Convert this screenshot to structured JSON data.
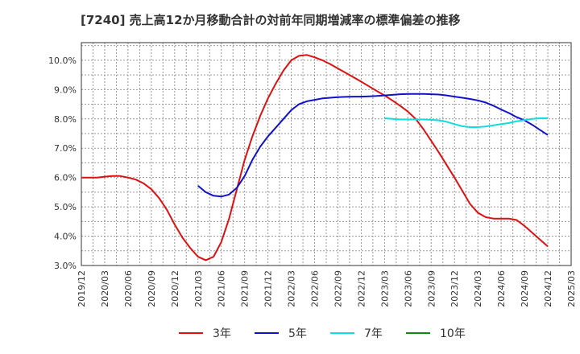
{
  "chart_data": {
    "type": "line",
    "title": "[7240]  売上高12か月移動合計の対前年同期増減率の標準偏差の推移",
    "x_tick_labels": [
      "2019/12",
      "2020/03",
      "2020/06",
      "2020/09",
      "2020/12",
      "2021/03",
      "2021/06",
      "2021/09",
      "2021/12",
      "2022/03",
      "2022/06",
      "2022/09",
      "2022/12",
      "2023/03",
      "2023/06",
      "2023/09",
      "2023/12",
      "2024/03",
      "2024/06",
      "2024/09",
      "2024/12",
      "2025/03"
    ],
    "y_tick_labels": [
      "10.0%",
      "9.0%",
      "8.0%",
      "7.0%",
      "6.0%",
      "5.0%",
      "4.0%",
      "3.0%"
    ],
    "ylim": [
      3.0,
      10.6
    ],
    "grid": true,
    "legend_position": "bottom",
    "x_months": [
      "2019-12",
      "2020-01",
      "2020-02",
      "2020-03",
      "2020-04",
      "2020-05",
      "2020-06",
      "2020-07",
      "2020-08",
      "2020-09",
      "2020-10",
      "2020-11",
      "2020-12",
      "2021-01",
      "2021-02",
      "2021-03",
      "2021-04",
      "2021-05",
      "2021-06",
      "2021-07",
      "2021-08",
      "2021-09",
      "2021-10",
      "2021-11",
      "2021-12",
      "2022-01",
      "2022-02",
      "2022-03",
      "2022-04",
      "2022-05",
      "2022-06",
      "2022-07",
      "2022-08",
      "2022-09",
      "2022-10",
      "2022-11",
      "2022-12",
      "2023-01",
      "2023-02",
      "2023-03",
      "2023-04",
      "2023-05",
      "2023-06",
      "2023-07",
      "2023-08",
      "2023-09",
      "2023-10",
      "2023-11",
      "2023-12",
      "2024-01",
      "2024-02",
      "2024-03",
      "2024-04",
      "2024-05",
      "2024-06",
      "2024-07",
      "2024-08",
      "2024-09",
      "2024-10",
      "2024-11",
      "2024-12"
    ],
    "series": [
      {
        "name": "3年",
        "color": "#dd1111",
        "values": [
          6.0,
          6.0,
          6.0,
          6.03,
          6.05,
          6.05,
          6.0,
          5.93,
          5.8,
          5.6,
          5.3,
          4.9,
          4.4,
          3.95,
          3.6,
          3.3,
          3.18,
          3.3,
          3.8,
          4.6,
          5.6,
          6.6,
          7.4,
          8.1,
          8.7,
          9.2,
          9.65,
          10.0,
          10.15,
          10.18,
          10.1,
          10.0,
          9.87,
          9.72,
          9.57,
          9.42,
          9.27,
          9.11,
          8.95,
          8.8,
          8.63,
          8.45,
          8.25,
          8.0,
          7.65,
          7.25,
          6.85,
          6.42,
          6.0,
          5.55,
          5.1,
          4.8,
          4.65,
          4.6,
          4.6,
          4.6,
          4.55,
          4.35,
          4.12,
          3.88,
          3.65
        ]
      },
      {
        "name": "5年",
        "color": "#1111cc",
        "values": [
          null,
          null,
          null,
          null,
          null,
          null,
          null,
          null,
          null,
          null,
          null,
          null,
          null,
          null,
          null,
          5.72,
          5.5,
          5.38,
          5.35,
          5.42,
          5.65,
          6.05,
          6.6,
          7.05,
          7.4,
          7.7,
          8.0,
          8.3,
          8.5,
          8.6,
          8.65,
          8.7,
          8.72,
          8.74,
          8.75,
          8.76,
          8.76,
          8.77,
          8.78,
          8.8,
          8.82,
          8.84,
          8.85,
          8.85,
          8.85,
          8.84,
          8.83,
          8.8,
          8.76,
          8.72,
          8.68,
          8.63,
          8.56,
          8.45,
          8.32,
          8.2,
          8.06,
          7.95,
          7.8,
          7.62,
          7.45
        ]
      },
      {
        "name": "7年",
        "color": "#11dddd",
        "values": [
          null,
          null,
          null,
          null,
          null,
          null,
          null,
          null,
          null,
          null,
          null,
          null,
          null,
          null,
          null,
          null,
          null,
          null,
          null,
          null,
          null,
          null,
          null,
          null,
          null,
          null,
          null,
          null,
          null,
          null,
          null,
          null,
          null,
          null,
          null,
          null,
          null,
          null,
          null,
          8.02,
          8.0,
          7.98,
          7.98,
          7.98,
          7.98,
          7.97,
          7.95,
          7.9,
          7.82,
          7.75,
          7.72,
          7.72,
          7.74,
          7.78,
          7.82,
          7.86,
          7.92,
          7.96,
          8.0,
          8.02,
          8.02
        ]
      },
      {
        "name": "10年",
        "color": "#118811",
        "values": []
      }
    ]
  }
}
